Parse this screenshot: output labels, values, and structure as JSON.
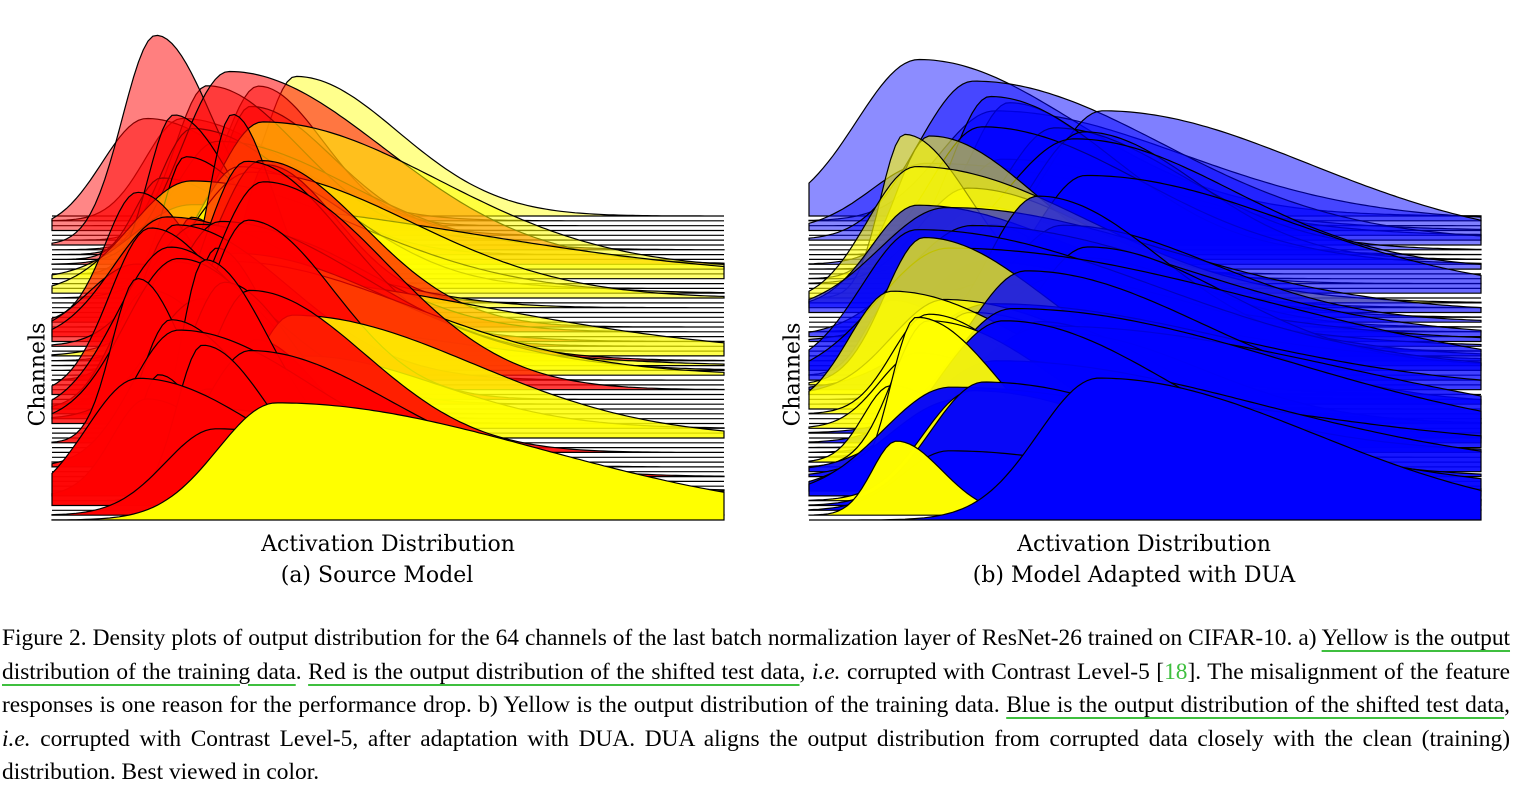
{
  "chart_data": [
    {
      "type": "ridgeline",
      "panel": "a",
      "caption": "(a) Source Model",
      "xlabel": "Activation Distribution",
      "ylabel": "Channels",
      "n_channels": 64,
      "series": [
        {
          "name": "training data",
          "color": "#ffff00"
        },
        {
          "name": "shifted test data",
          "color": "#ff0000"
        }
      ],
      "colors": {
        "train": "#ffff00",
        "test": "#ff0000",
        "outline": "#000000"
      }
    },
    {
      "type": "ridgeline",
      "panel": "b",
      "caption": "(b) Model Adapted with DUA",
      "xlabel": "Activation Distribution",
      "ylabel": "Channels",
      "n_channels": 64,
      "series": [
        {
          "name": "training data",
          "color": "#ffff00"
        },
        {
          "name": "adapted test data",
          "color": "#0000ff"
        }
      ],
      "colors": {
        "train": "#ffff00",
        "test": "#0000ff",
        "outline": "#000000"
      }
    }
  ],
  "caption": {
    "figure_label": "Figure 2.",
    "s1": "Density plots of output distribution for the 64 channels of the last batch normalization layer of ResNet-26 trained on CIFAR-10.",
    "a_label": "a)",
    "hl1": "Yellow is the output distribution of the training data",
    "dot1": ".",
    "hl2": "Red is the output distribution of the shifted test data",
    "comma1": ",",
    "ie1": "i.e.",
    "t1": "corrupted with Contrast Level-5 [",
    "cite": "18",
    "t2": "]. The misalignment of the feature responses is one reason for the performance drop. b) Yellow is the output distribution of the training data.",
    "hl3": "Blue is the output distribution of the shifted test data",
    "comma2": ",",
    "ie2": "i.e.",
    "t3": "corrupted with Contrast Level-5, after adaptation with DUA. DUA aligns the output distribution from corrupted data closely with the clean (training) distribution. Best viewed in color."
  }
}
